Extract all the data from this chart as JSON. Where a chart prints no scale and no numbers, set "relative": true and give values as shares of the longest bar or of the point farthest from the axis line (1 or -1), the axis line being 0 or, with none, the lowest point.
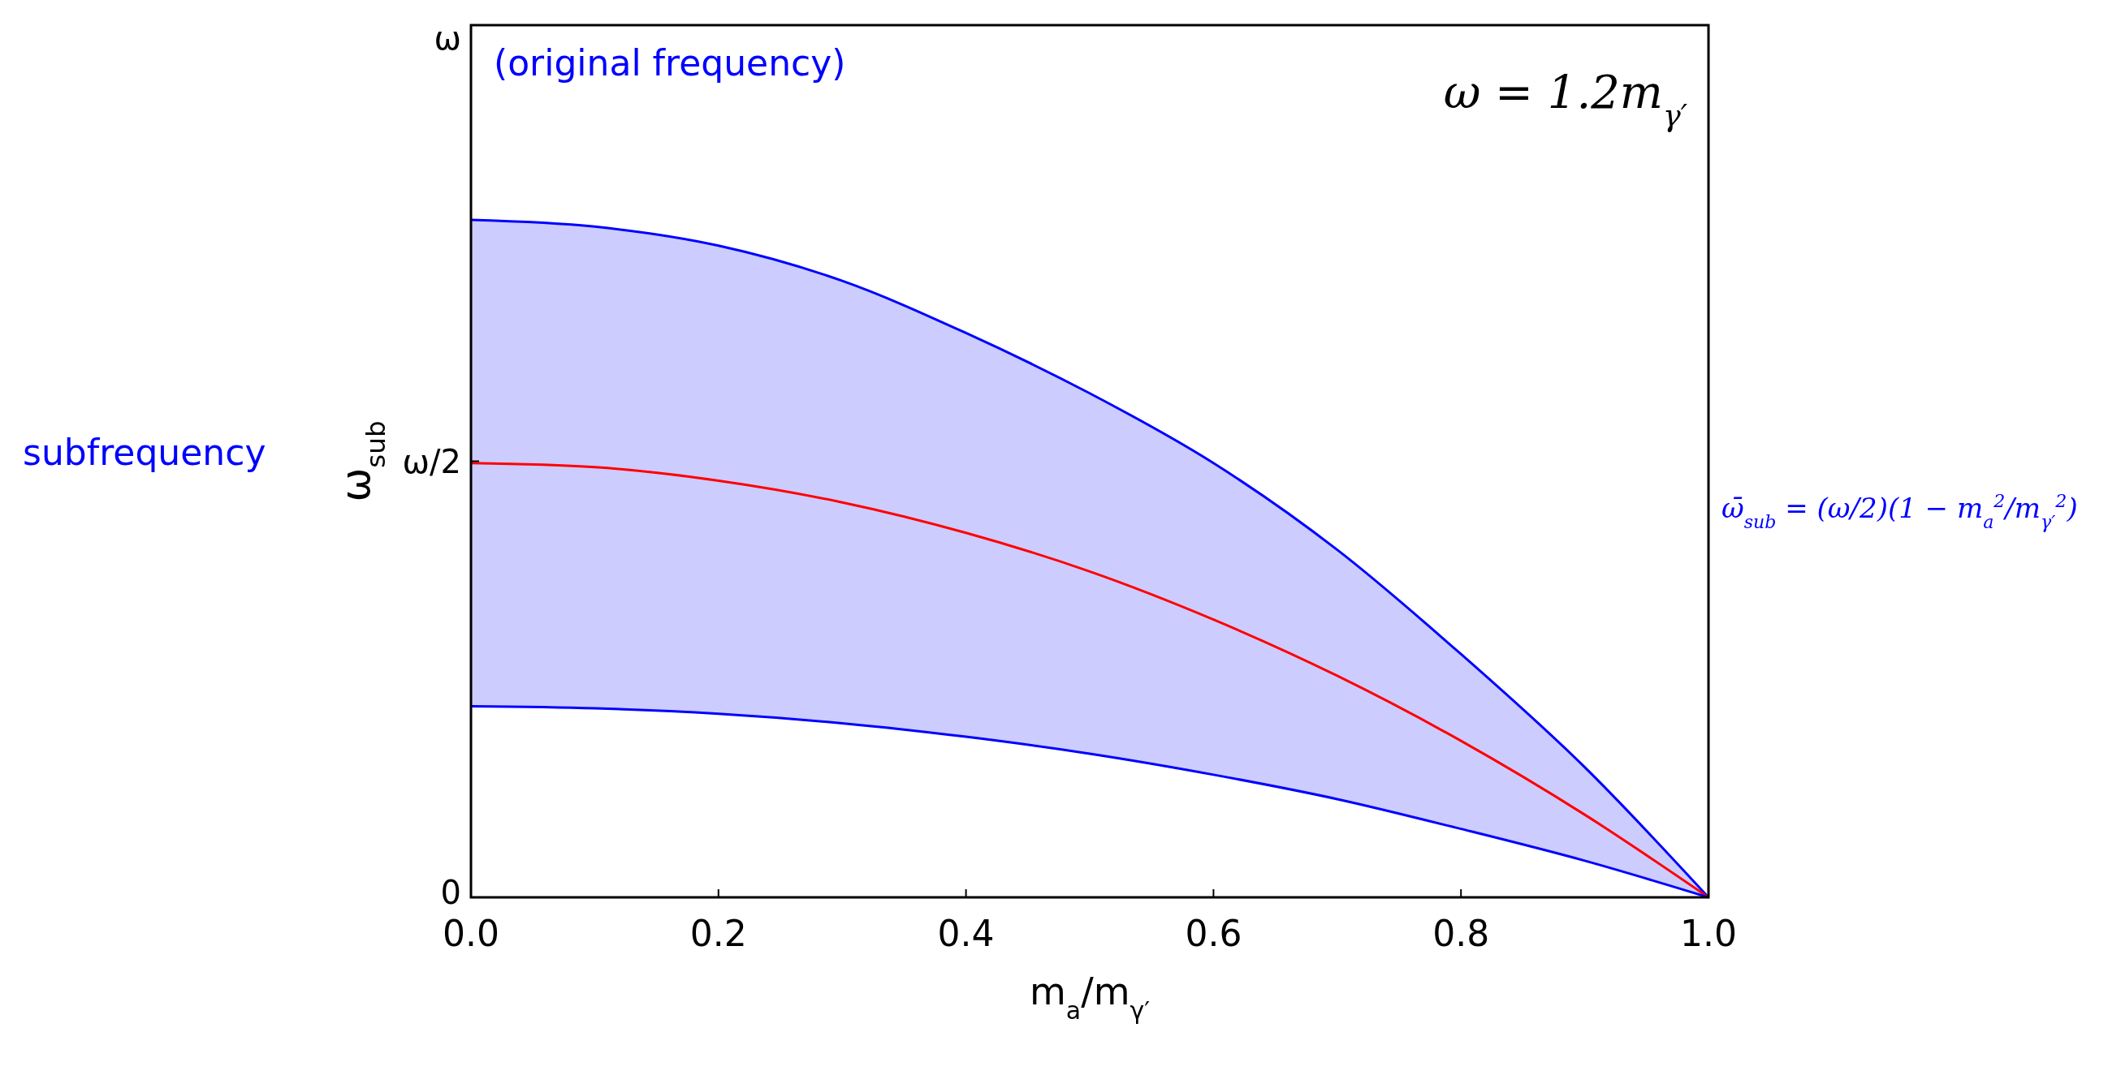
{
  "chart_data": {
    "type": "line",
    "relative": true,
    "xlabel": "m$_{a}$/m$_{γ′}$",
    "ylabel": "ω$_{sub}$",
    "x": [
      0,
      0.1,
      0.2,
      0.3,
      0.4,
      0.5,
      0.6,
      0.7,
      0.8,
      0.9,
      1
    ],
    "series": [
      {
        "color": "#0000ff",
        "values": [
          1,
          0.99,
          0.962,
          0.91,
          0.833,
          0.744,
          0.641,
          0.513,
          0.359,
          0.192,
          0
        ]
      },
      {
        "color": "#ff0000",
        "values": [
          0.641,
          0.635,
          0.615,
          0.583,
          0.538,
          0.481,
          0.41,
          0.327,
          0.231,
          0.122,
          0
        ],
        "lower": [
          0.282,
          0.279,
          0.271,
          0.257,
          0.237,
          0.212,
          0.181,
          0.145,
          0.101,
          0.054,
          0
        ],
        "upper": [
          1,
          0.99,
          0.962,
          0.91,
          0.833,
          0.744,
          0.641,
          0.513,
          0.359,
          0.192,
          0
        ]
      },
      {
        "color": "#0000ff",
        "values": [
          0.282,
          0.279,
          0.271,
          0.257,
          0.237,
          0.212,
          0.181,
          0.145,
          0.101,
          0.054,
          0
        ]
      }
    ],
    "xlim": [
      0,
      1
    ],
    "xticks": [
      {
        "value": 0,
        "label": "0.0"
      },
      {
        "value": 0.2,
        "label": "0.2"
      },
      {
        "value": 0.4,
        "label": "0.4"
      },
      {
        "value": 0.6,
        "label": "0.6"
      },
      {
        "value": 0.8,
        "label": "0.8"
      },
      {
        "value": 1,
        "label": "1.0"
      }
    ],
    "annotations": [
      "(original frequency)",
      "ω = 1.2m$_{γ′}$",
      "subfrequency",
      "ω̄$_{sub}$ = (ω/2)(1 − m$_{a}$$^{2}$/m$_{γ′}$$^{2}$)",
      "ω",
      "ω/2",
      "0"
    ]
  }
}
